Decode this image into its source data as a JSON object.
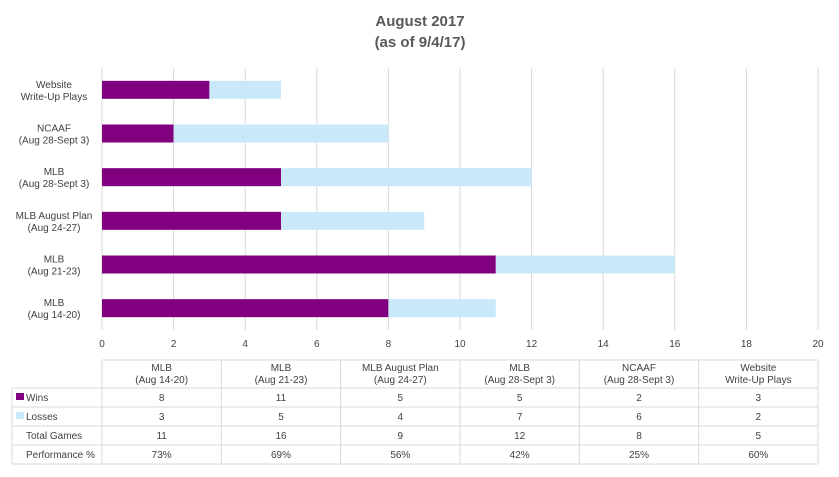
{
  "chart_data": {
    "type": "bar",
    "orientation": "horizontal",
    "stacked": true,
    "title": [
      "August 2017",
      "(as of 9/4/17)"
    ],
    "categories": [
      [
        "MLB",
        "(Aug 14-20)"
      ],
      [
        "MLB",
        "(Aug 21-23)"
      ],
      [
        "MLB August Plan",
        "(Aug 24-27)"
      ],
      [
        "MLB",
        "(Aug 28-Sept 3)"
      ],
      [
        "NCAAF",
        "(Aug 28-Sept 3)"
      ],
      [
        "Website",
        "Write-Up Plays"
      ]
    ],
    "series": [
      {
        "name": "Wins",
        "color": "#800080",
        "values": [
          8,
          11,
          5,
          5,
          2,
          3
        ]
      },
      {
        "name": "Losses",
        "color": "#c9e9fb",
        "values": [
          3,
          5,
          4,
          7,
          6,
          2
        ]
      }
    ],
    "xlim": [
      0,
      20
    ],
    "xticks": [
      0,
      2,
      4,
      6,
      8,
      10,
      12,
      14,
      16,
      18,
      20
    ],
    "grid": true,
    "legend": "data-table",
    "table_rows": [
      {
        "label": "Total Games",
        "values": [
          "11",
          "16",
          "9",
          "12",
          "8",
          "5"
        ]
      },
      {
        "label": "Performance %",
        "values": [
          "73%",
          "69%",
          "56%",
          "42%",
          "25%",
          "60%"
        ]
      }
    ]
  }
}
